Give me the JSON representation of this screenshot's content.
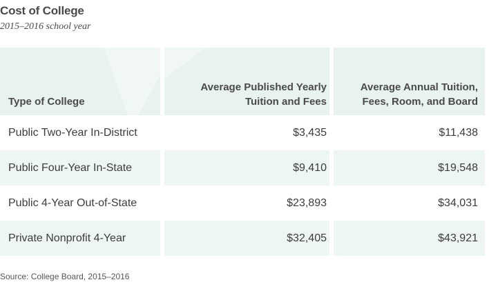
{
  "title": "Cost of College",
  "subtitle": "2015–2016 school year",
  "table": {
    "headers": [
      "Type of College",
      "Average Published Yearly Tuition and Fees",
      "Average Annual Tuition, Fees, Room, and Board"
    ],
    "rows": [
      [
        "Public Two-Year In-District",
        "$3,435",
        "$11,438"
      ],
      [
        "Public Four-Year In-State",
        "$9,410",
        "$19,548"
      ],
      [
        "Public 4-Year Out-of-State",
        "$23,893",
        "$34,031"
      ],
      [
        "Private Nonprofit 4-Year",
        "$32,405",
        "$43,921"
      ]
    ]
  },
  "source": "Source: College Board, 2015–2016",
  "colors": {
    "header_bg": "#e8f3ef",
    "row_stripe": "#edf6f3",
    "text": "#3c3c3c"
  }
}
